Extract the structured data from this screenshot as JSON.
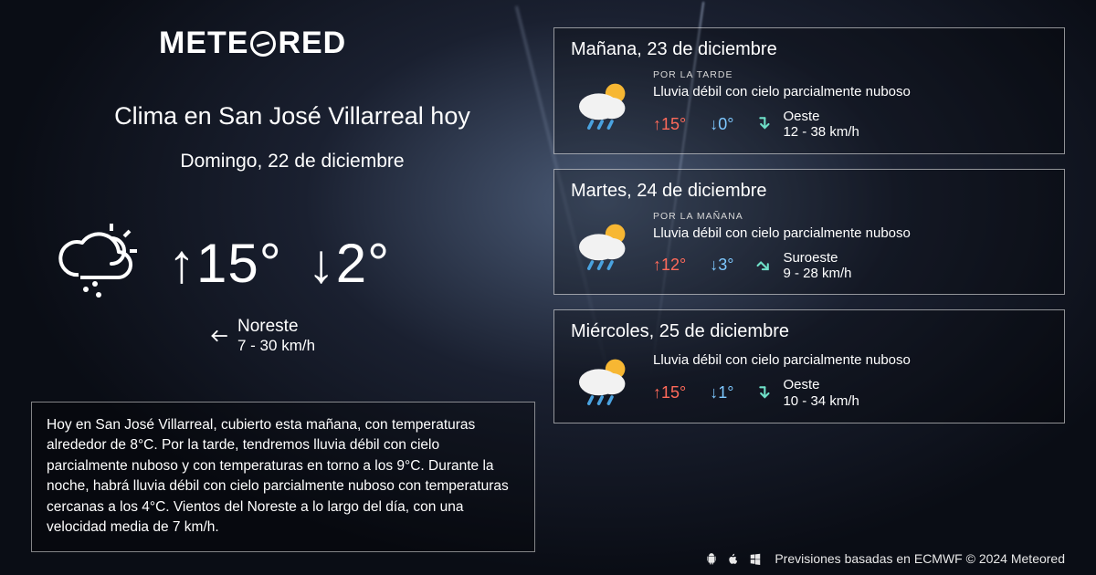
{
  "brand": {
    "pre": "METE",
    "post": "RED"
  },
  "today": {
    "title": "Clima en San José Villarreal hoy",
    "date": "Domingo, 22 de diciembre",
    "high": "15°",
    "low": "2°",
    "wind_dir": "Noreste",
    "wind_speed": "7 - 30 km/h",
    "wind_arrow_rotation": 225,
    "description": "Hoy en San José Villarreal, cubierto esta mañana, con temperaturas alrededor de 8°C. Por la tarde, tendremos lluvia débil con cielo parcialmente nuboso y con temperaturas en torno a los 9°C. Durante la noche, habrá lluvia débil con cielo parcialmente nuboso  con temperaturas cercanas a los 4°C. Vientos del Noreste a lo largo del día, con una velocidad media de 7 km/h."
  },
  "forecast": [
    {
      "title": "Mañana, 23 de diciembre",
      "period": "POR LA TARDE",
      "condition": "Lluvia débil con cielo parcialmente nuboso",
      "high": "15°",
      "low": "0°",
      "wind_dir": "Oeste",
      "wind_speed": "12 - 38 km/h",
      "wind_arrow_color": "#6fe0c8",
      "wind_arrow_rotation": 90
    },
    {
      "title": "Martes, 24 de diciembre",
      "period": "POR LA MAÑANA",
      "condition": "Lluvia débil con cielo parcialmente nuboso",
      "high": "12°",
      "low": "3°",
      "wind_dir": "Suroeste",
      "wind_speed": "9 - 28 km/h",
      "wind_arrow_color": "#6fe0c8",
      "wind_arrow_rotation": 45
    },
    {
      "title": "Miércoles, 25 de diciembre",
      "period": "",
      "condition": "Lluvia débil con cielo parcialmente nuboso",
      "high": "15°",
      "low": "1°",
      "wind_dir": "Oeste",
      "wind_speed": "10 - 34 km/h",
      "wind_arrow_color": "#6fe0c8",
      "wind_arrow_rotation": 90
    }
  ],
  "footer": {
    "text": "Previsiones basadas en ECMWF © 2024 Meteored"
  },
  "colors": {
    "high": "#ff6a5a",
    "low": "#7ec8ff",
    "card_border": "rgba(255,255,255,0.55)",
    "text": "#ffffff"
  },
  "icons": {
    "hero_style": "outline",
    "card_sun": "#f7b733",
    "card_cloud": "#f2f2f2",
    "card_rain": "#4aa3e0"
  }
}
